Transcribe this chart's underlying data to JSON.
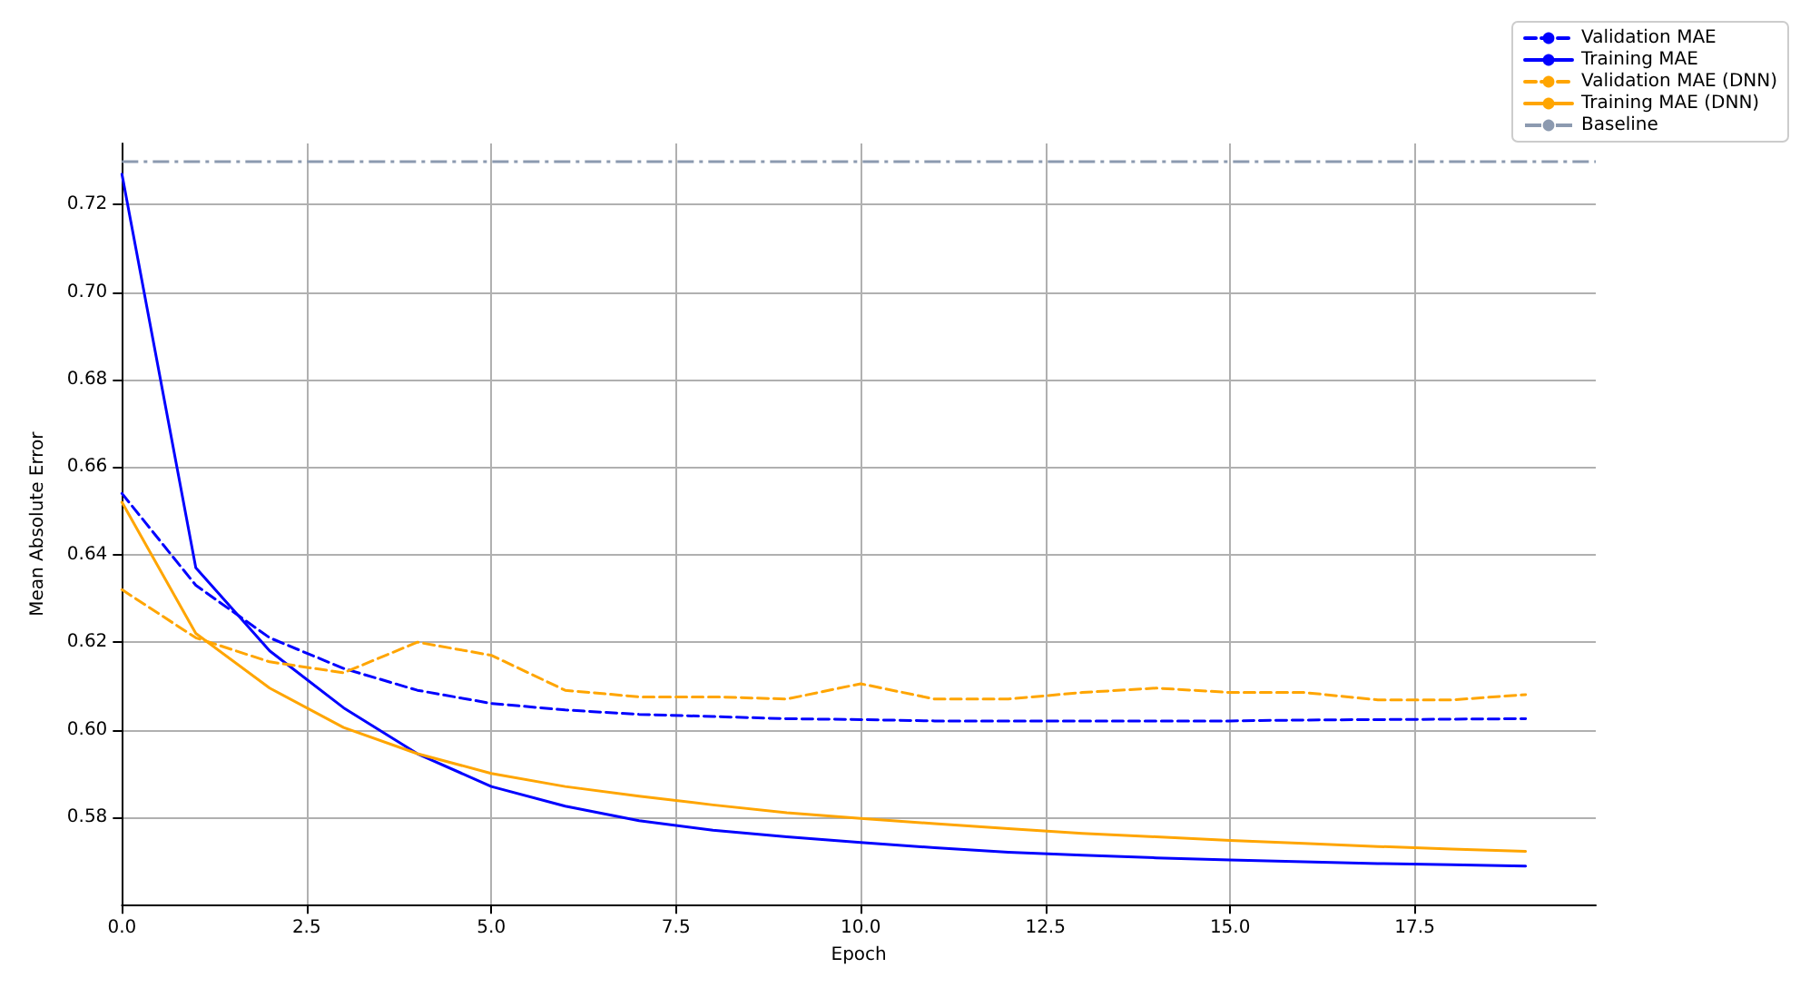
{
  "chart_data": {
    "type": "line",
    "xlabel": "Epoch",
    "ylabel": "Mean Absolute Error",
    "x": [
      0,
      1,
      2,
      3,
      4,
      5,
      6,
      7,
      8,
      9,
      10,
      11,
      12,
      13,
      14,
      15,
      16,
      17,
      18,
      19
    ],
    "series": [
      {
        "name": "Validation MAE",
        "color": "#0000ff",
        "line_style": "dashed",
        "values": [
          0.654,
          0.633,
          0.621,
          0.614,
          0.609,
          0.606,
          0.6045,
          0.6035,
          0.603,
          0.6025,
          0.6023,
          0.602,
          0.602,
          0.602,
          0.602,
          0.602,
          0.6022,
          0.6023,
          0.6024,
          0.6025
        ]
      },
      {
        "name": "Training MAE",
        "color": "#0000ff",
        "line_style": "solid",
        "values": [
          0.727,
          0.637,
          0.618,
          0.605,
          0.5945,
          0.587,
          0.5825,
          0.5792,
          0.577,
          0.5755,
          0.5742,
          0.573,
          0.572,
          0.5713,
          0.5707,
          0.5702,
          0.5698,
          0.5694,
          0.5691,
          0.5688
        ]
      },
      {
        "name": "Validation MAE (DNN)",
        "color": "#ffa500",
        "line_style": "dashed",
        "values": [
          0.632,
          0.621,
          0.6155,
          0.613,
          0.62,
          0.617,
          0.609,
          0.6075,
          0.6075,
          0.607,
          0.6105,
          0.607,
          0.607,
          0.6085,
          0.6095,
          0.6085,
          0.6085,
          0.6068,
          0.6068,
          0.608
        ]
      },
      {
        "name": "Training MAE (DNN)",
        "color": "#ffa500",
        "line_style": "solid",
        "values": [
          0.652,
          0.622,
          0.6095,
          0.6005,
          0.5945,
          0.59,
          0.587,
          0.5848,
          0.5828,
          0.581,
          0.5797,
          0.5785,
          0.5774,
          0.5763,
          0.5755,
          0.5747,
          0.574,
          0.5733,
          0.5727,
          0.5722
        ]
      }
    ],
    "ref_lines": [
      {
        "axis": "y",
        "value": 0.73,
        "label": "Baseline",
        "color": "#8c9ab0",
        "line_style": "dashed"
      }
    ],
    "xlim": [
      0,
      19.95
    ],
    "xticks": [
      {
        "value": 0,
        "label": "0.0"
      },
      {
        "value": 2.5,
        "label": "2.5"
      },
      {
        "value": 5,
        "label": "5.0"
      },
      {
        "value": 7.5,
        "label": "7.5"
      },
      {
        "value": 10,
        "label": "10.0"
      },
      {
        "value": 12.5,
        "label": "12.5"
      },
      {
        "value": 15,
        "label": "15.0"
      },
      {
        "value": 17.5,
        "label": "17.5"
      }
    ],
    "ylim": [
      0.56,
      0.734
    ],
    "yticks": [
      0.58,
      {
        "value": 0.6,
        "label": "0.60"
      },
      0.62,
      0.64,
      0.66,
      0.68,
      {
        "value": 0.7,
        "label": "0.70"
      },
      0.72
    ],
    "grid": true,
    "legend": "top right",
    "marker": "none"
  }
}
